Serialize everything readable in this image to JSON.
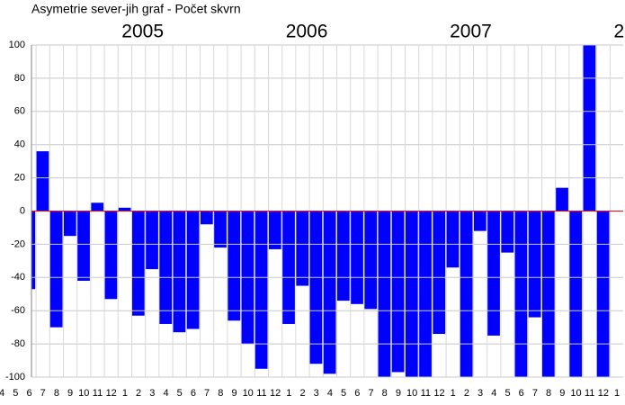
{
  "chart_data": {
    "type": "bar",
    "title": "Asymetrie  sever-jih  graf  -  Počet skvrn",
    "categories": [
      "4",
      "5",
      "6",
      "7",
      "8",
      "9",
      "10",
      "11",
      "12",
      "1",
      "2",
      "3",
      "4",
      "5",
      "6",
      "7",
      "8",
      "9",
      "10",
      "11",
      "12",
      "1",
      "2",
      "3",
      "4",
      "5",
      "6",
      "7",
      "8",
      "9",
      "10",
      "11",
      "12",
      "1",
      "2",
      "3",
      "4",
      "5",
      "6",
      "7",
      "8",
      "9",
      "10",
      "11",
      "12",
      "1"
    ],
    "years": [
      null,
      null,
      null,
      null,
      null,
      null,
      null,
      null,
      null,
      "2005",
      null,
      null,
      null,
      null,
      null,
      null,
      null,
      null,
      null,
      null,
      null,
      "2006",
      null,
      null,
      null,
      null,
      null,
      null,
      null,
      null,
      null,
      null,
      null,
      "2007",
      null,
      null,
      null,
      null,
      null,
      null,
      null,
      null,
      null,
      null,
      null,
      "2"
    ],
    "values": [
      null,
      null,
      -47,
      36,
      -70,
      -15,
      -42,
      5,
      -53,
      2,
      -63,
      -35,
      -68,
      -73,
      -71,
      -8,
      -22,
      -66,
      -80,
      -95,
      -23,
      -68,
      -45,
      -92,
      -98,
      -54,
      -56,
      -59,
      -100,
      -97,
      -100,
      -100,
      -74,
      -34,
      -100,
      -12,
      -75,
      -25,
      -100,
      -64,
      -100,
      14,
      -100,
      100,
      -100,
      null
    ],
    "color": "#0000ff",
    "ylim": [
      -100,
      100
    ],
    "yticks": [
      -100,
      -80,
      -60,
      -40,
      -20,
      0,
      20,
      40,
      60,
      80,
      100
    ],
    "grid": true
  }
}
